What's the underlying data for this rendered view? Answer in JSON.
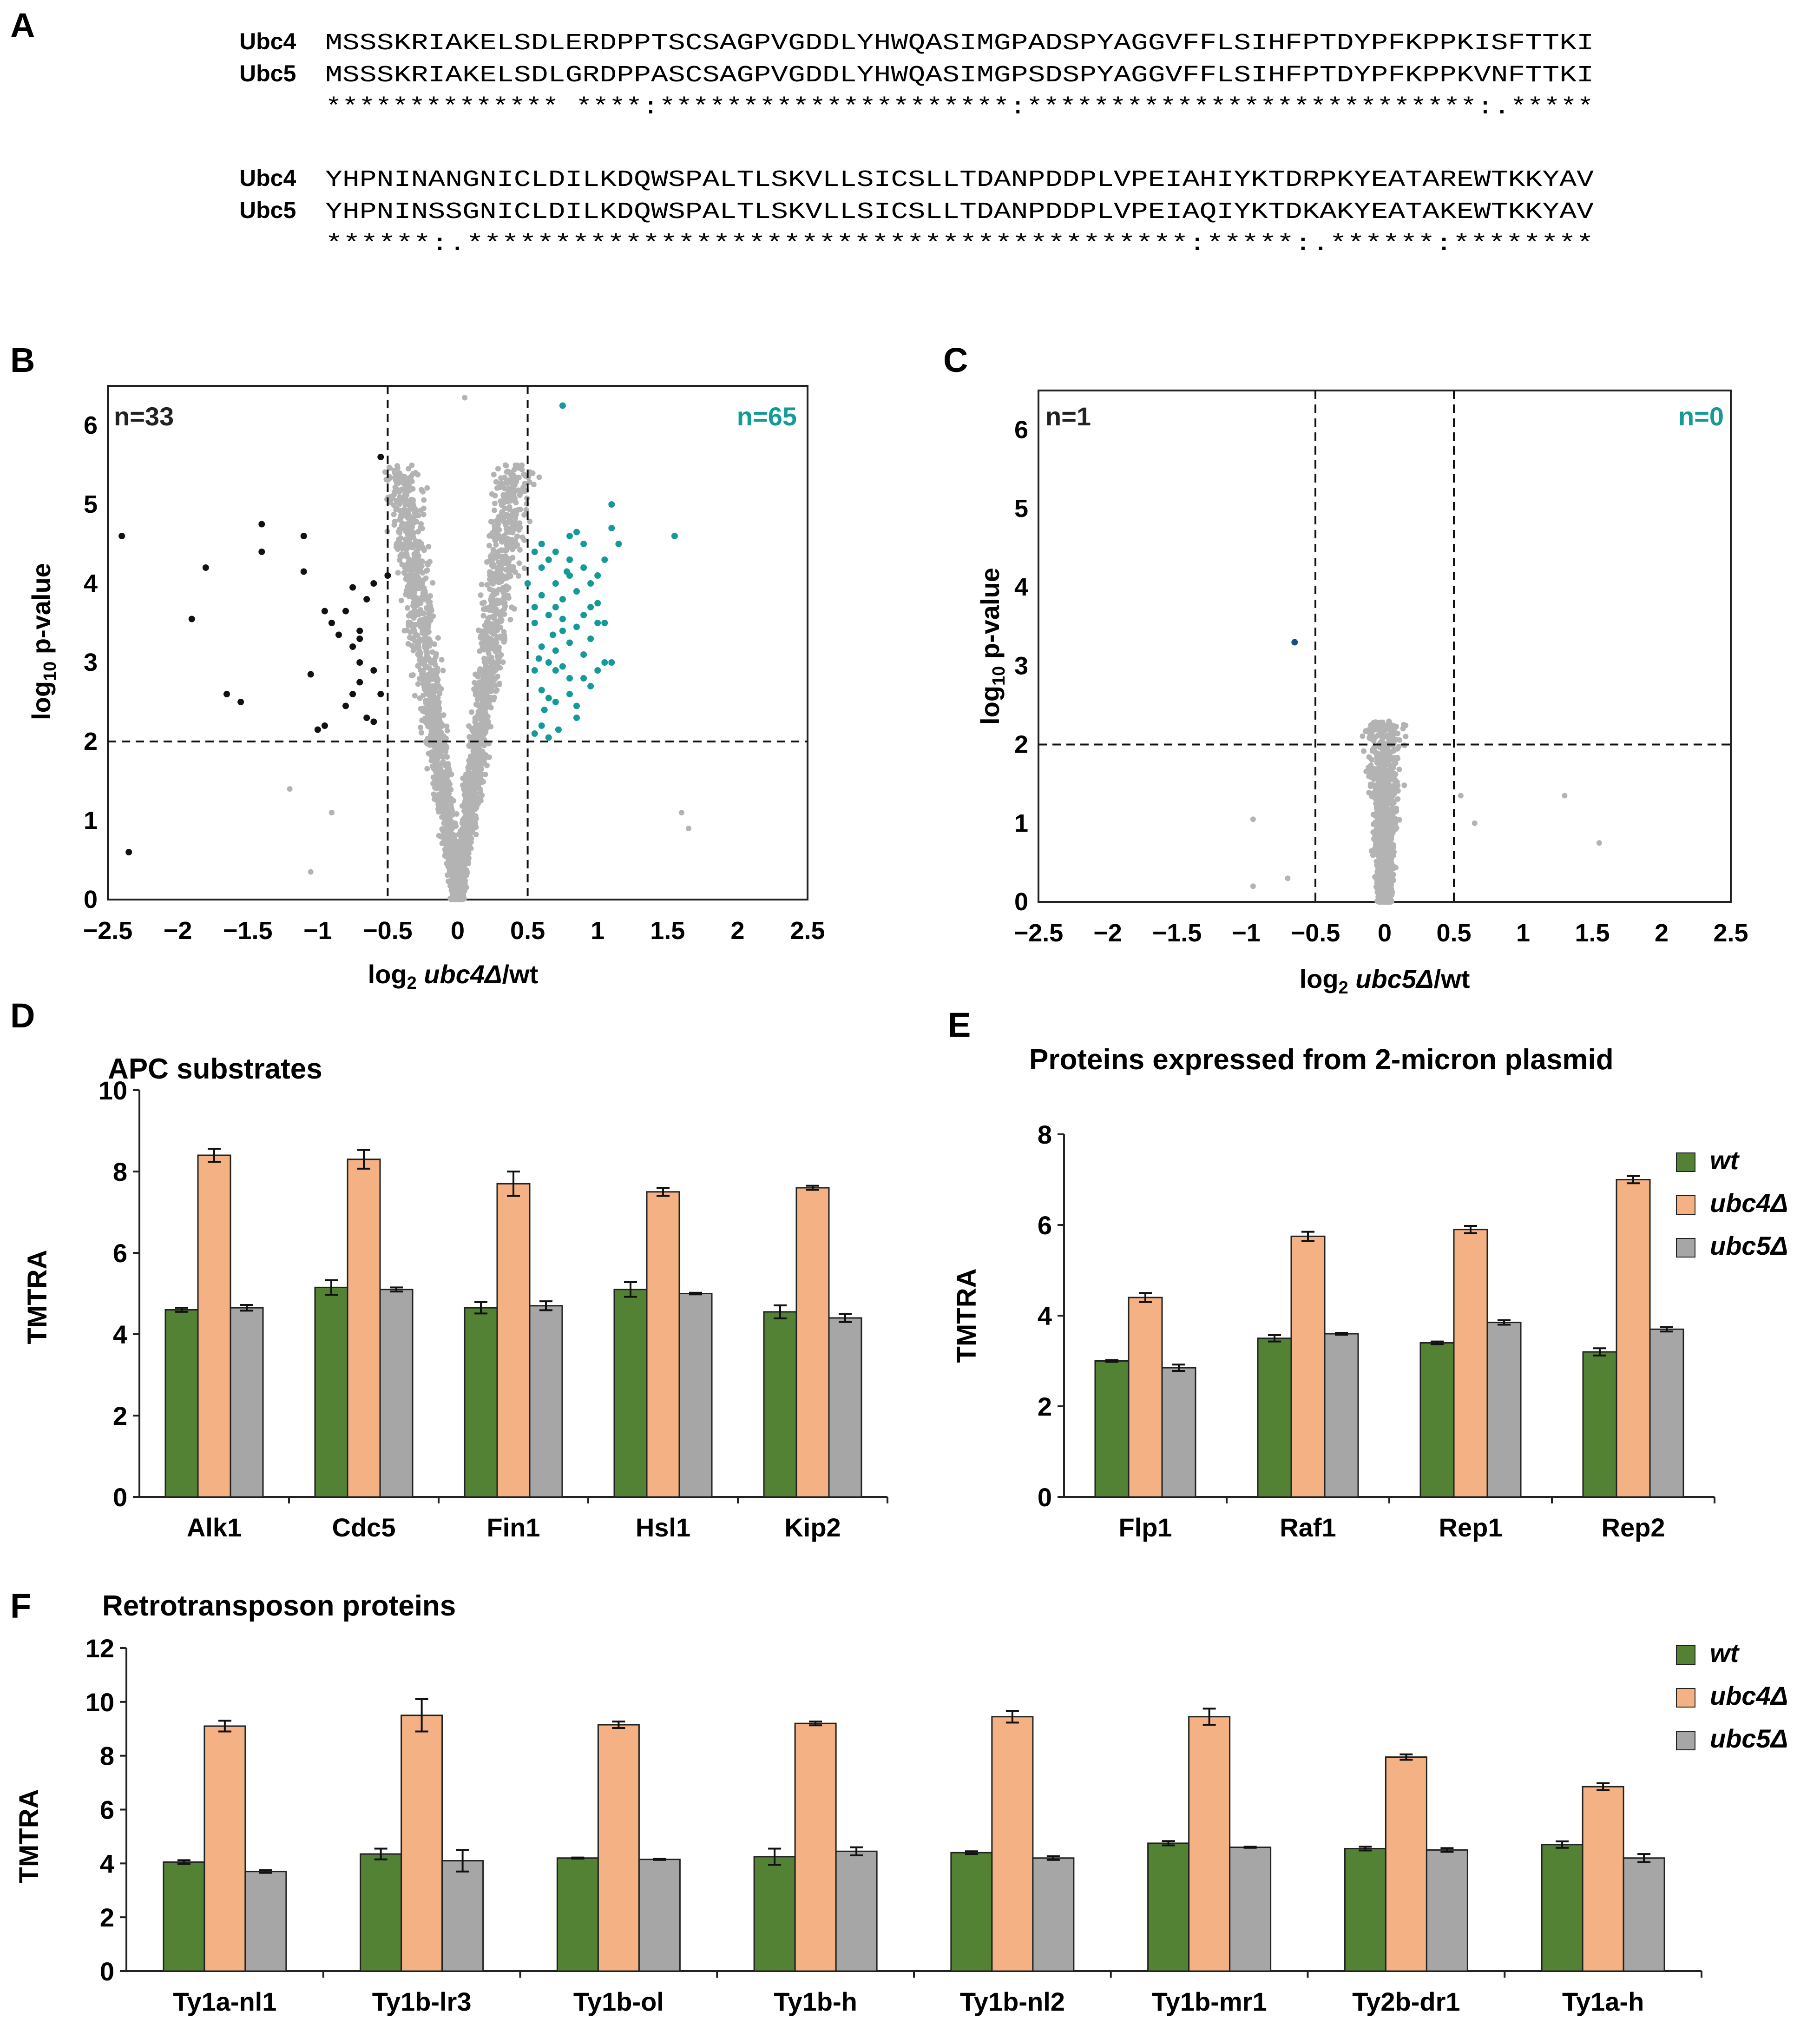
{
  "sequence_alignment": {
    "panel": "A",
    "blocks": [
      {
        "ubc4_label": "Ubc4",
        "ubc4_seq": "MSSSKRIAKELSDLERDPPTSCSAGPVGDDLYHWQASIMGPADSPYAGGVFFLSIHFPTDYPFKPPKISFTTKI",
        "ubc5_label": "Ubc5",
        "ubc5_seq": "MSSSKRIAKELSDLGRDPPASCSAGPVGDDLYHWQASIMGPSDSPYAGGVFFLSIHFPTDYPFKPPKVNFTTKI",
        "consensus": "************** ****:*********************:***************************:.*****"
      },
      {
        "ubc4_label": "Ubc4",
        "ubc4_seq": "YHPNINANGNICLDILKDQWSPALTLSKVLLSICSLLTDANPDDPLVPEIAHIYKTDRPKYEATAREWTKKYAV",
        "ubc5_label": "Ubc5",
        "ubc5_seq": "YHPNINSSGNICLDILKDQWSPALTLSKVLLSICSLLTDANPDDPLVPEIAQIYKTDKAKYEATAKEWTKKYAV",
        "consensus": "******:.*****************************************:*****:.******:********"
      }
    ]
  },
  "chart_data": [
    {
      "panel": "B",
      "type": "scatter",
      "title": "",
      "xlabel_prefix": "log",
      "xlabel_sub": "2",
      "xlabel_italic": "ubc4Δ",
      "xlabel_suffix": "/wt",
      "ylabel_prefix": "log",
      "ylabel_sub": "10",
      "ylabel_suffix": "p-value",
      "xlim": [
        -2.5,
        2.5
      ],
      "ylim": [
        0,
        6.5
      ],
      "xticks": [
        "−2.5",
        "−2",
        "−1.5",
        "−1",
        "−0.5",
        "0",
        "0.5",
        "1",
        "1.5",
        "2",
        "2.5"
      ],
      "yticks": [
        "0",
        "1",
        "2",
        "3",
        "4",
        "5",
        "6"
      ],
      "thresholds": {
        "x": [
          -0.5,
          0.5
        ],
        "y": 2
      },
      "count_left": "n=33",
      "count_right": "n=65",
      "colors": {
        "background_points": "#b3b3b3",
        "down": "#111111",
        "up": "#159a9a"
      },
      "down_points": [
        [
          -2.4,
          4.6
        ],
        [
          -2.35,
          0.6
        ],
        [
          -1.9,
          3.55
        ],
        [
          -1.8,
          4.2
        ],
        [
          -1.65,
          2.6
        ],
        [
          -1.55,
          2.5
        ],
        [
          -1.4,
          4.75
        ],
        [
          -1.4,
          4.4
        ],
        [
          -1.1,
          4.6
        ],
        [
          -1.1,
          4.15
        ],
        [
          -1.05,
          2.85
        ],
        [
          -1.0,
          2.15
        ],
        [
          -0.95,
          3.65
        ],
        [
          -0.8,
          3.65
        ],
        [
          -0.75,
          3.95
        ],
        [
          -0.75,
          3.2
        ],
        [
          -0.7,
          3.4
        ],
        [
          -0.7,
          3.3
        ],
        [
          -0.65,
          2.3
        ],
        [
          -0.6,
          4.0
        ],
        [
          -0.6,
          2.9
        ],
        [
          -0.55,
          2.6
        ],
        [
          -0.5,
          4.1
        ],
        [
          -0.7,
          3.0
        ],
        [
          -0.75,
          2.6
        ],
        [
          -0.85,
          3.35
        ],
        [
          -0.9,
          3.5
        ],
        [
          -0.65,
          3.8
        ],
        [
          -0.7,
          2.75
        ],
        [
          -0.8,
          2.45
        ],
        [
          -0.6,
          2.25
        ],
        [
          -0.95,
          2.2
        ],
        [
          -0.55,
          5.6
        ]
      ],
      "up_points": [
        [
          0.5,
          4.0
        ],
        [
          0.55,
          3.5
        ],
        [
          0.55,
          2.9
        ],
        [
          0.6,
          4.5
        ],
        [
          0.6,
          3.2
        ],
        [
          0.6,
          2.2
        ],
        [
          0.65,
          4.3
        ],
        [
          0.65,
          3.0
        ],
        [
          0.7,
          4.0
        ],
        [
          0.7,
          3.7
        ],
        [
          0.7,
          2.5
        ],
        [
          0.75,
          6.25
        ],
        [
          0.75,
          3.4
        ],
        [
          0.8,
          4.6
        ],
        [
          0.8,
          4.1
        ],
        [
          0.8,
          2.8
        ],
        [
          0.85,
          3.9
        ],
        [
          0.85,
          2.3
        ],
        [
          0.9,
          3.6
        ],
        [
          0.9,
          4.5
        ],
        [
          0.95,
          3.3
        ],
        [
          1.0,
          4.1
        ],
        [
          1.0,
          2.9
        ],
        [
          1.05,
          3.0
        ],
        [
          1.1,
          5.0
        ],
        [
          1.1,
          4.7
        ],
        [
          1.15,
          4.5
        ],
        [
          1.1,
          3.0
        ],
        [
          1.55,
          4.6
        ],
        [
          0.55,
          4.4
        ],
        [
          0.6,
          3.85
        ],
        [
          0.65,
          2.55
        ],
        [
          0.7,
          3.15
        ],
        [
          0.75,
          3.8
        ],
        [
          0.8,
          2.6
        ],
        [
          0.85,
          3.45
        ],
        [
          0.9,
          4.2
        ],
        [
          0.95,
          2.7
        ],
        [
          1.0,
          3.75
        ],
        [
          1.05,
          4.3
        ],
        [
          0.55,
          2.1
        ],
        [
          0.6,
          2.65
        ],
        [
          0.65,
          3.6
        ],
        [
          0.7,
          4.4
        ],
        [
          0.75,
          2.95
        ],
        [
          0.8,
          3.25
        ],
        [
          0.85,
          4.65
        ],
        [
          0.9,
          3.1
        ],
        [
          0.95,
          4.0
        ],
        [
          1.0,
          3.5
        ],
        [
          0.55,
          3.7
        ],
        [
          0.6,
          4.2
        ],
        [
          0.65,
          2.05
        ],
        [
          0.7,
          2.9
        ],
        [
          0.75,
          3.55
        ],
        [
          0.8,
          4.3
        ],
        [
          0.85,
          2.45
        ],
        [
          0.9,
          2.8
        ],
        [
          0.95,
          3.7
        ],
        [
          1.05,
          3.5
        ],
        [
          0.58,
          3.05
        ],
        [
          0.62,
          2.4
        ],
        [
          0.68,
          3.35
        ],
        [
          0.72,
          2.15
        ],
        [
          0.78,
          4.15
        ]
      ]
    },
    {
      "panel": "C",
      "type": "scatter",
      "title": "",
      "xlabel_prefix": "log",
      "xlabel_sub": "2",
      "xlabel_italic": "ubc5Δ",
      "xlabel_suffix": "/wt",
      "ylabel_prefix": "log",
      "ylabel_sub": "10",
      "ylabel_suffix": "p-value",
      "xlim": [
        -2.5,
        2.5
      ],
      "ylim": [
        0,
        6.5
      ],
      "xticks": [
        "−2.5",
        "−2",
        "−1.5",
        "−1",
        "−0.5",
        "0",
        "0.5",
        "1",
        "1.5",
        "2",
        "2.5"
      ],
      "yticks": [
        "0",
        "1",
        "2",
        "3",
        "4",
        "5",
        "6"
      ],
      "thresholds": {
        "x": [
          -0.5,
          0.5
        ],
        "y": 2
      },
      "count_left": "n=1",
      "count_right": "n=0",
      "colors": {
        "background_points": "#b3b3b3",
        "down": "#1a4f8a",
        "up": "#159a9a"
      },
      "down_points": [
        [
          -0.65,
          3.3
        ]
      ],
      "up_points": []
    },
    {
      "panel": "D",
      "type": "bar",
      "title": "APC substrates",
      "ylabel": "TMTRA",
      "ylim": [
        0,
        10
      ],
      "yticks": [
        "0",
        "2",
        "4",
        "6",
        "8",
        "10"
      ],
      "categories": [
        "Alk1",
        "Cdc5",
        "Fin1",
        "Hsl1",
        "Kip2"
      ],
      "series": [
        {
          "name": "wt",
          "color": "#548235",
          "values": [
            4.6,
            5.15,
            4.65,
            5.1,
            4.55
          ],
          "errors": [
            0.05,
            0.18,
            0.14,
            0.18,
            0.16
          ]
        },
        {
          "name": "ubc4Δ",
          "color": "#f4b183",
          "values": [
            8.4,
            8.3,
            7.7,
            7.5,
            7.6
          ],
          "errors": [
            0.16,
            0.23,
            0.3,
            0.1,
            0.05
          ]
        },
        {
          "name": "ubc5Δ",
          "color": "#a6a6a6",
          "values": [
            4.65,
            5.1,
            4.7,
            5.0,
            4.4
          ],
          "errors": [
            0.07,
            0.05,
            0.11,
            0.02,
            0.1
          ]
        }
      ]
    },
    {
      "panel": "E",
      "type": "bar",
      "title": "Proteins expressed from 2-micron plasmid",
      "ylabel": "TMTRA",
      "ylim": [
        0,
        8
      ],
      "yticks": [
        "0",
        "2",
        "4",
        "6",
        "8"
      ],
      "categories": [
        "Flp1",
        "Raf1",
        "Rep1",
        "Rep2"
      ],
      "legend": [
        "wt",
        "ubc4Δ",
        "ubc5Δ"
      ],
      "series": [
        {
          "name": "wt",
          "color": "#548235",
          "values": [
            3.0,
            3.5,
            3.4,
            3.2
          ],
          "errors": [
            0.02,
            0.07,
            0.03,
            0.08
          ]
        },
        {
          "name": "ubc4Δ",
          "color": "#f4b183",
          "values": [
            4.4,
            5.75,
            5.9,
            7.0
          ],
          "errors": [
            0.1,
            0.1,
            0.08,
            0.08
          ]
        },
        {
          "name": "ubc5Δ",
          "color": "#a6a6a6",
          "values": [
            2.85,
            3.6,
            3.85,
            3.7
          ],
          "errors": [
            0.07,
            0.02,
            0.05,
            0.05
          ]
        }
      ]
    },
    {
      "panel": "F",
      "type": "bar",
      "title": "Retrotransposon proteins",
      "ylabel": "TMTRA",
      "ylim": [
        0,
        12
      ],
      "yticks": [
        "0",
        "2",
        "4",
        "6",
        "8",
        "10",
        "12"
      ],
      "categories": [
        "Ty1a-nl1",
        "Ty1b-lr3",
        "Ty1b-ol",
        "Ty1b-h",
        "Ty1b-nl2",
        "Ty1b-mr1",
        "Ty2b-dr1",
        "Ty1a-h"
      ],
      "legend": [
        "wt",
        "ubc4Δ",
        "ubc5Δ"
      ],
      "series": [
        {
          "name": "wt",
          "color": "#548235",
          "values": [
            4.05,
            4.35,
            4.2,
            4.25,
            4.4,
            4.75,
            4.55,
            4.7
          ],
          "errors": [
            0.07,
            0.2,
            0.02,
            0.3,
            0.05,
            0.08,
            0.07,
            0.12
          ]
        },
        {
          "name": "ubc4Δ",
          "color": "#f4b183",
          "values": [
            9.1,
            9.5,
            9.15,
            9.2,
            9.45,
            9.45,
            7.95,
            6.85
          ],
          "errors": [
            0.2,
            0.6,
            0.12,
            0.07,
            0.22,
            0.3,
            0.1,
            0.13
          ]
        },
        {
          "name": "ubc5Δ",
          "color": "#a6a6a6",
          "values": [
            3.7,
            4.1,
            4.15,
            4.45,
            4.2,
            4.6,
            4.5,
            4.2
          ],
          "errors": [
            0.05,
            0.4,
            0.02,
            0.15,
            0.07,
            0.02,
            0.07,
            0.15
          ]
        }
      ]
    }
  ]
}
